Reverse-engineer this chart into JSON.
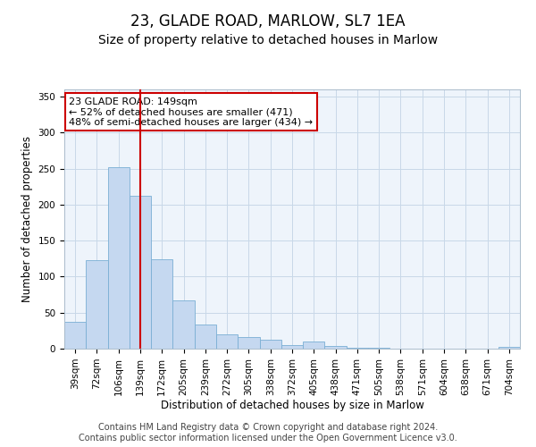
{
  "title": "23, GLADE ROAD, MARLOW, SL7 1EA",
  "subtitle": "Size of property relative to detached houses in Marlow",
  "xlabel": "Distribution of detached houses by size in Marlow",
  "ylabel": "Number of detached properties",
  "bar_labels": [
    "39sqm",
    "72sqm",
    "106sqm",
    "139sqm",
    "172sqm",
    "205sqm",
    "239sqm",
    "272sqm",
    "305sqm",
    "338sqm",
    "372sqm",
    "405sqm",
    "438sqm",
    "471sqm",
    "505sqm",
    "538sqm",
    "571sqm",
    "604sqm",
    "638sqm",
    "671sqm",
    "704sqm"
  ],
  "bar_values": [
    37,
    123,
    252,
    212,
    124,
    67,
    34,
    20,
    16,
    12,
    5,
    10,
    4,
    1,
    1,
    0,
    0,
    0,
    0,
    0,
    3
  ],
  "bar_color": "#c5d8f0",
  "bar_edgecolor": "#7aafd4",
  "vline_x": 3,
  "vline_color": "#cc0000",
  "annotation_text": "23 GLADE ROAD: 149sqm\n← 52% of detached houses are smaller (471)\n48% of semi-detached houses are larger (434) →",
  "annotation_box_edgecolor": "#cc0000",
  "annotation_box_facecolor": "#ffffff",
  "ylim": [
    0,
    360
  ],
  "yticks": [
    0,
    50,
    100,
    150,
    200,
    250,
    300,
    350
  ],
  "grid_color": "#c8d8e8",
  "background_color": "#eef4fb",
  "footer_line1": "Contains HM Land Registry data © Crown copyright and database right 2024.",
  "footer_line2": "Contains public sector information licensed under the Open Government Licence v3.0.",
  "title_fontsize": 12,
  "subtitle_fontsize": 10,
  "axis_label_fontsize": 8.5,
  "tick_fontsize": 7.5,
  "footer_fontsize": 7,
  "annotation_fontsize": 8
}
